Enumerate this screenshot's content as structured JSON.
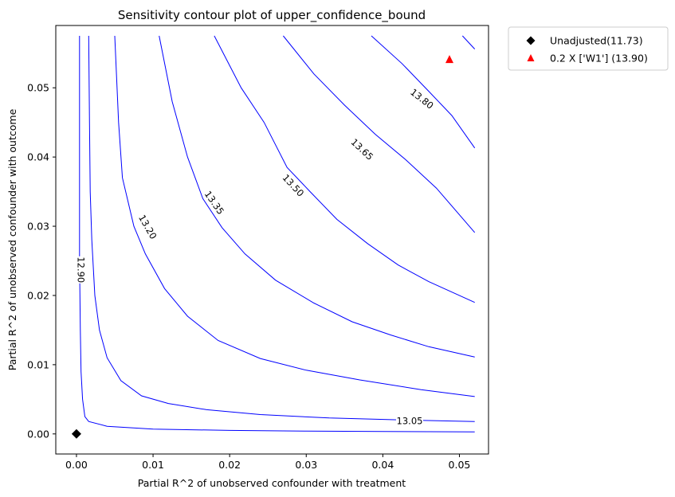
{
  "chart_data": {
    "type": "contour",
    "title": "Sensitivity contour plot of upper_confidence_bound",
    "xlabel": "Partial R^2 of unobserved confounder with treatment",
    "ylabel": "Partial R^2 of unobserved confounder with outcome",
    "xlim": [
      -0.0027,
      0.0538
    ],
    "ylim": [
      -0.0029,
      0.059
    ],
    "x_ticks": [
      0.0,
      0.01,
      0.02,
      0.03,
      0.04,
      0.05
    ],
    "x_tick_labels": [
      "0.00",
      "0.01",
      "0.02",
      "0.03",
      "0.04",
      "0.05"
    ],
    "y_ticks": [
      0.0,
      0.01,
      0.02,
      0.03,
      0.04,
      0.05
    ],
    "y_tick_labels": [
      "0.00",
      "0.01",
      "0.02",
      "0.03",
      "0.04",
      "0.05"
    ],
    "grid": false,
    "line_color": "#0000ff",
    "contour_levels": [
      {
        "level": 12.9,
        "label": "12.90",
        "points": [
          [
            0.0004,
            0.0575
          ],
          [
            0.0004,
            0.04
          ],
          [
            0.0004,
            0.025
          ],
          [
            0.0005,
            0.015
          ],
          [
            0.0006,
            0.009
          ],
          [
            0.0008,
            0.005
          ],
          [
            0.0011,
            0.0025
          ],
          [
            0.0016,
            0.0018
          ],
          [
            0.004,
            0.0011
          ],
          [
            0.01,
            0.0007
          ],
          [
            0.02,
            0.0005
          ],
          [
            0.03,
            0.0004
          ],
          [
            0.04,
            0.00035
          ],
          [
            0.052,
            0.0003
          ]
        ]
      },
      {
        "level": 13.05,
        "label": "13.05",
        "points": [
          [
            0.0016,
            0.0575
          ],
          [
            0.0017,
            0.045
          ],
          [
            0.0018,
            0.035
          ],
          [
            0.002,
            0.028
          ],
          [
            0.0024,
            0.02
          ],
          [
            0.003,
            0.015
          ],
          [
            0.004,
            0.011
          ],
          [
            0.0058,
            0.0077
          ],
          [
            0.0085,
            0.0055
          ],
          [
            0.012,
            0.0044
          ],
          [
            0.017,
            0.0035
          ],
          [
            0.024,
            0.0028
          ],
          [
            0.033,
            0.0023
          ],
          [
            0.043,
            0.002
          ],
          [
            0.052,
            0.0018
          ]
        ]
      },
      {
        "level": 13.2,
        "label": "13.20",
        "points": [
          [
            0.005,
            0.0575
          ],
          [
            0.0055,
            0.045
          ],
          [
            0.006,
            0.037
          ],
          [
            0.0075,
            0.03
          ],
          [
            0.009,
            0.026
          ],
          [
            0.0115,
            0.021
          ],
          [
            0.0145,
            0.017
          ],
          [
            0.0185,
            0.0135
          ],
          [
            0.024,
            0.0109
          ],
          [
            0.03,
            0.0092
          ],
          [
            0.037,
            0.0078
          ],
          [
            0.045,
            0.0064
          ],
          [
            0.052,
            0.0054
          ]
        ]
      },
      {
        "level": 13.35,
        "label": "13.35",
        "points": [
          [
            0.0108,
            0.0575
          ],
          [
            0.0125,
            0.048
          ],
          [
            0.0145,
            0.04
          ],
          [
            0.0165,
            0.034
          ],
          [
            0.019,
            0.0298
          ],
          [
            0.022,
            0.026
          ],
          [
            0.026,
            0.0222
          ],
          [
            0.031,
            0.0189
          ],
          [
            0.036,
            0.0162
          ],
          [
            0.041,
            0.0143
          ],
          [
            0.046,
            0.0126
          ],
          [
            0.052,
            0.0111
          ]
        ]
      },
      {
        "level": 13.5,
        "label": "13.50",
        "points": [
          [
            0.018,
            0.0575
          ],
          [
            0.0215,
            0.05
          ],
          [
            0.0245,
            0.045
          ],
          [
            0.0275,
            0.0385
          ],
          [
            0.0305,
            0.035
          ],
          [
            0.034,
            0.031
          ],
          [
            0.038,
            0.0275
          ],
          [
            0.042,
            0.0244
          ],
          [
            0.046,
            0.022
          ],
          [
            0.052,
            0.019
          ]
        ]
      },
      {
        "level": 13.65,
        "label": "13.65",
        "points": [
          [
            0.027,
            0.0575
          ],
          [
            0.031,
            0.052
          ],
          [
            0.035,
            0.0475
          ],
          [
            0.039,
            0.0433
          ],
          [
            0.043,
            0.0396
          ],
          [
            0.047,
            0.0355
          ],
          [
            0.052,
            0.0291
          ]
        ]
      },
      {
        "level": 13.8,
        "label": "13.80",
        "points": [
          [
            0.0385,
            0.0575
          ],
          [
            0.0425,
            0.0535
          ],
          [
            0.046,
            0.0495
          ],
          [
            0.049,
            0.046
          ],
          [
            0.052,
            0.0413
          ]
        ]
      },
      {
        "level": 13.95,
        "label": "",
        "points": [
          [
            0.0504,
            0.0575
          ],
          [
            0.052,
            0.0556
          ]
        ]
      }
    ],
    "contour_label_positions": [
      {
        "label": "12.90",
        "x": 0.0006,
        "y": 0.0237,
        "rotate": 90
      },
      {
        "label": "13.20",
        "x": 0.0093,
        "y": 0.0299,
        "rotate": 60
      },
      {
        "label": "13.35",
        "x": 0.018,
        "y": 0.0334,
        "rotate": 55
      },
      {
        "label": "13.50",
        "x": 0.0283,
        "y": 0.0359,
        "rotate": 47
      },
      {
        "label": "13.65",
        "x": 0.0373,
        "y": 0.0411,
        "rotate": 43
      },
      {
        "label": "13.80",
        "x": 0.0451,
        "y": 0.0484,
        "rotate": 38
      },
      {
        "label": "13.05",
        "x": 0.0435,
        "y": 0.0019,
        "rotate": 0
      }
    ],
    "markers": [
      {
        "name": "Unadjusted(11.73)",
        "x": 0.0,
        "y": 0.0,
        "marker": "diamond",
        "color": "#000000"
      },
      {
        "name": "0.2 X ['W1'] (13.90)",
        "x": 0.0487,
        "y": 0.0541,
        "marker": "triangle",
        "color": "#ff0000"
      }
    ],
    "legend_position": "outside upper-right"
  }
}
